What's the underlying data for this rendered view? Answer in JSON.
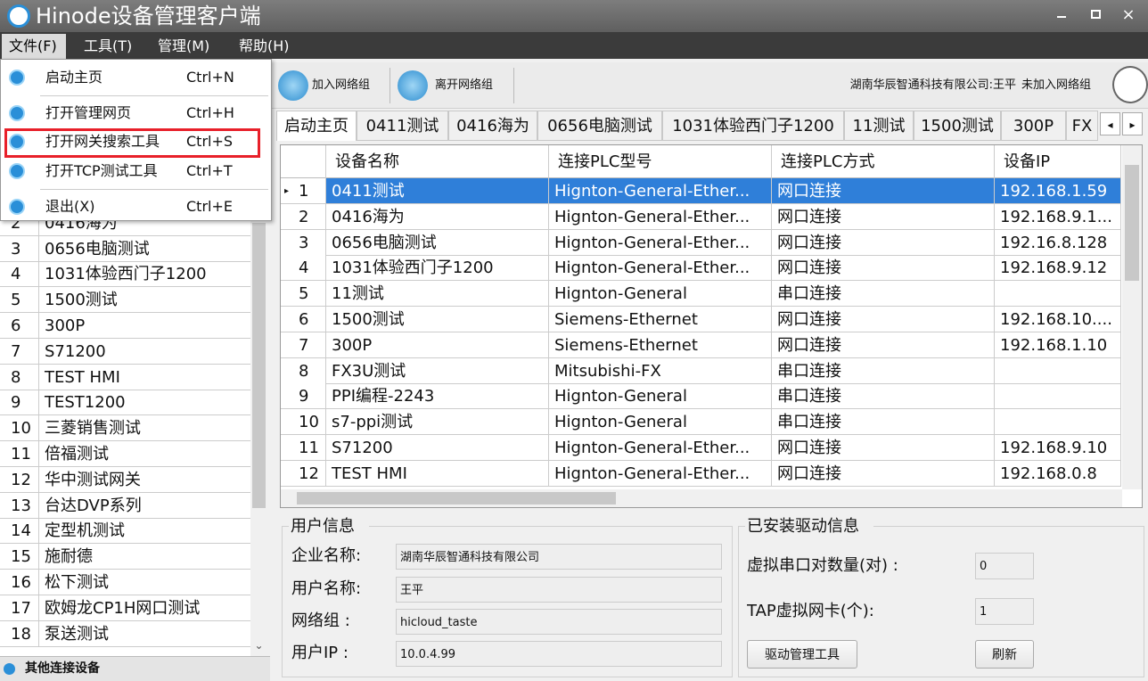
{
  "window": {
    "title": "Hinode设备管理客户端"
  },
  "menu_bar": [
    "文件(F)",
    "工具(T)",
    "管理(M)",
    "帮助(H)"
  ],
  "file_menu": [
    {
      "label": "启动主页",
      "shortcut": "Ctrl+N"
    },
    {
      "label": "打开管理网页",
      "shortcut": "Ctrl+H"
    },
    {
      "label": "打开网关搜索工具",
      "shortcut": "Ctrl+S"
    },
    {
      "label": "打开TCP测试工具",
      "shortcut": "Ctrl+T"
    },
    {
      "label": "退出(X)",
      "shortcut": "Ctrl+E"
    }
  ],
  "toolbar": {
    "buttons": [
      "加入网络组",
      "离开网络组"
    ],
    "account": "湖南华辰智通科技有限公司:王平",
    "status": "未加入网络组"
  },
  "device_list": {
    "rows": [
      [
        2,
        "0416海为"
      ],
      [
        3,
        "0656电脑测试"
      ],
      [
        4,
        "1031体验西门子1200"
      ],
      [
        5,
        "1500测试"
      ],
      [
        6,
        "300P"
      ],
      [
        7,
        "S71200"
      ],
      [
        8,
        "TEST HMI"
      ],
      [
        9,
        "TEST1200"
      ],
      [
        10,
        "三菱销售测试"
      ],
      [
        11,
        "倍福测试"
      ],
      [
        12,
        "华中测试网关"
      ],
      [
        13,
        "台达DVP系列"
      ],
      [
        14,
        "定型机测试"
      ],
      [
        15,
        "施耐德"
      ],
      [
        16,
        "松下测试"
      ],
      [
        17,
        "欧姆龙CP1H网口测试"
      ],
      [
        18,
        "泵送测试"
      ]
    ],
    "footer": "其他连接设备"
  },
  "tabs": [
    "启动主页",
    "0411测试",
    "0416海为",
    "0656电脑测试",
    "1031体验西门子1200",
    "11测试",
    "1500测试",
    "300P",
    "FX"
  ],
  "grid": {
    "columns": [
      "设备名称",
      "连接PLC型号",
      "连接PLC方式",
      "设备IP"
    ],
    "rows": [
      [
        1,
        "0411测试",
        "Hignton-General-Ether...",
        "网口连接",
        "192.168.1.59"
      ],
      [
        2,
        "0416海为",
        "Hignton-General-Ether...",
        "网口连接",
        "192.168.9.1..."
      ],
      [
        3,
        "0656电脑测试",
        "Hignton-General-Ether...",
        "网口连接",
        "192.16.8.128"
      ],
      [
        4,
        "1031体验西门子1200",
        "Hignton-General-Ether...",
        "网口连接",
        "192.168.9.12"
      ],
      [
        5,
        "11测试",
        "Hignton-General",
        "串口连接",
        null
      ],
      [
        6,
        "1500测试",
        "Siemens-Ethernet",
        "网口连接",
        "192.168.10...."
      ],
      [
        7,
        "300P",
        "Siemens-Ethernet",
        "网口连接",
        "192.168.1.10"
      ],
      [
        8,
        "FX3U测试",
        "Mitsubishi-FX",
        "串口连接",
        null
      ],
      [
        9,
        "PPI编程-2243",
        "Hignton-General",
        "串口连接",
        null
      ],
      [
        10,
        "s7-ppi测试",
        "Hignton-General",
        "串口连接",
        null
      ],
      [
        11,
        "S71200",
        "Hignton-General-Ether...",
        "网口连接",
        "192.168.9.10"
      ],
      [
        12,
        "TEST HMI",
        "Hignton-General-Ether...",
        "网口连接",
        "192.168.0.8"
      ]
    ]
  },
  "user_info": {
    "title": "用户信息",
    "fields": [
      {
        "label": "企业名称:",
        "value": "湖南华辰智通科技有限公司"
      },
      {
        "label": "用户名称:",
        "value": "王平"
      },
      {
        "label": "网络组 :",
        "value": "hicloud_taste"
      },
      {
        "label": "用户IP :",
        "value": "10.0.4.99"
      }
    ]
  },
  "driver_info": {
    "title": "已安装驱动信息",
    "fields": [
      {
        "label": "虚拟串口对数量(对) :",
        "value": "0"
      },
      {
        "label": "TAP虚拟网卡(个):",
        "value": "1"
      }
    ],
    "buttons": [
      "驱动管理工具",
      "刷新"
    ]
  }
}
